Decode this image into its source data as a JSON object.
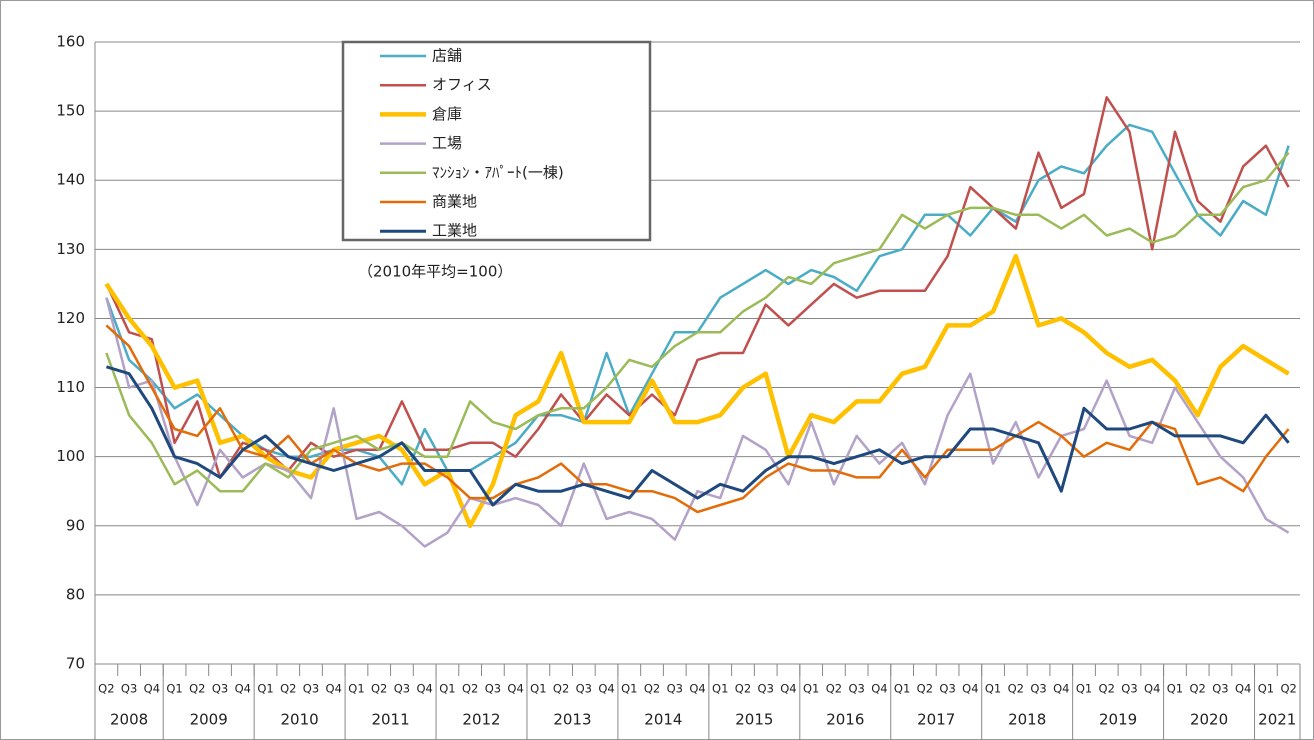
{
  "chart_data": {
    "type": "line",
    "note": "（2010年平均=100）",
    "categories": [
      "Q2",
      "Q3",
      "Q4",
      "Q1",
      "Q2",
      "Q3",
      "Q4",
      "Q1",
      "Q2",
      "Q3",
      "Q4",
      "Q1",
      "Q2",
      "Q3",
      "Q4",
      "Q1",
      "Q2",
      "Q3",
      "Q4",
      "Q1",
      "Q2",
      "Q3",
      "Q4",
      "Q1",
      "Q2",
      "Q3",
      "Q4",
      "Q1",
      "Q2",
      "Q3",
      "Q4",
      "Q1",
      "Q2",
      "Q3",
      "Q4",
      "Q1",
      "Q2",
      "Q3",
      "Q4",
      "Q1",
      "Q2",
      "Q3",
      "Q4",
      "Q1",
      "Q2",
      "Q3",
      "Q4",
      "Q1",
      "Q2",
      "Q3",
      "Q4",
      "Q1",
      "Q2"
    ],
    "years": [
      "2008",
      "2009",
      "2010",
      "2011",
      "2012",
      "2013",
      "2014",
      "2015",
      "2016",
      "2017",
      "2018",
      "2019",
      "2020",
      "2021"
    ],
    "ylim": [
      70,
      160
    ],
    "yticks": [
      70,
      80,
      90,
      100,
      110,
      120,
      130,
      140,
      150,
      160
    ],
    "grid": true,
    "series": [
      {
        "name": "店舗",
        "color": "#4bacc6",
        "line_width": 2.5,
        "values": [
          123,
          114,
          111,
          107,
          109,
          106,
          103,
          101,
          100,
          100,
          101,
          101,
          100,
          96,
          104,
          98,
          98,
          100,
          102,
          106,
          106,
          105,
          115,
          106,
          112,
          118,
          118,
          123,
          125,
          127,
          125,
          127,
          126,
          124,
          129,
          130,
          135,
          135,
          132,
          136,
          134,
          140,
          142,
          141,
          145,
          148,
          147,
          141,
          135,
          132,
          137,
          135,
          145
        ]
      },
      {
        "name": "オフィス",
        "color": "#c0504d",
        "line_width": 2.5,
        "values": [
          125,
          118,
          117,
          102,
          108,
          97,
          102,
          101,
          98,
          102,
          100,
          101,
          101,
          108,
          101,
          101,
          102,
          102,
          100,
          104,
          109,
          105,
          109,
          106,
          109,
          106,
          114,
          115,
          115,
          122,
          119,
          122,
          125,
          123,
          124,
          124,
          124,
          129,
          139,
          136,
          133,
          144,
          136,
          138,
          152,
          147,
          130,
          147,
          137,
          134,
          142,
          145,
          139
        ]
      },
      {
        "name": "倉庫",
        "color": "#ffc000",
        "line_width": 4.5,
        "values": [
          125,
          120,
          116,
          110,
          111,
          102,
          103,
          100,
          98,
          97,
          101,
          102,
          103,
          101,
          96,
          98,
          90,
          96,
          106,
          108,
          115,
          105,
          105,
          105,
          111,
          105,
          105,
          106,
          110,
          112,
          100,
          106,
          105,
          108,
          108,
          112,
          113,
          119,
          119,
          121,
          129,
          119,
          120,
          118,
          115,
          113,
          114,
          111,
          106,
          113,
          116,
          114,
          112
        ]
      },
      {
        "name": "工場",
        "color": "#b3a2c7",
        "line_width": 2.5,
        "values": [
          123,
          110,
          111,
          100,
          93,
          101,
          97,
          99,
          98,
          94,
          107,
          91,
          92,
          90,
          87,
          89,
          94,
          93,
          94,
          93,
          90,
          99,
          91,
          92,
          91,
          88,
          95,
          94,
          103,
          101,
          96,
          105,
          96,
          103,
          99,
          102,
          96,
          106,
          112,
          99,
          105,
          97,
          103,
          104,
          111,
          103,
          102,
          110,
          105,
          100,
          97,
          91,
          89
        ]
      },
      {
        "name": "ﾏﾝｼｮﾝ・ｱﾊﾟｰﾄ(一棟)",
        "color": "#9bbb59",
        "line_width": 2.5,
        "values": [
          115,
          106,
          102,
          96,
          98,
          95,
          95,
          99,
          97,
          101,
          102,
          103,
          101,
          102,
          100,
          100,
          108,
          105,
          104,
          106,
          107,
          107,
          110,
          114,
          113,
          116,
          118,
          118,
          121,
          123,
          126,
          125,
          128,
          129,
          130,
          135,
          133,
          135,
          136,
          136,
          135,
          135,
          133,
          135,
          132,
          133,
          131,
          132,
          135,
          135,
          139,
          140,
          144
        ]
      },
      {
        "name": "商業地",
        "color": "#e36c09",
        "line_width": 2.5,
        "values": [
          119,
          116,
          110,
          104,
          103,
          107,
          101,
          100,
          103,
          99,
          101,
          99,
          98,
          99,
          99,
          97,
          94,
          94,
          96,
          97,
          99,
          96,
          96,
          95,
          95,
          94,
          92,
          93,
          94,
          97,
          99,
          98,
          98,
          97,
          97,
          101,
          97,
          101,
          101,
          101,
          103,
          105,
          103,
          100,
          102,
          101,
          105,
          104,
          96,
          97,
          95,
          100,
          104
        ]
      },
      {
        "name": "工業地",
        "color": "#1f497d",
        "line_width": 3,
        "values": [
          113,
          112,
          107,
          100,
          99,
          97,
          101,
          103,
          100,
          99,
          98,
          99,
          100,
          102,
          98,
          98,
          98,
          93,
          96,
          95,
          95,
          96,
          95,
          94,
          98,
          96,
          94,
          96,
          95,
          98,
          100,
          100,
          99,
          100,
          101,
          99,
          100,
          100,
          104,
          104,
          103,
          102,
          95,
          107,
          104,
          104,
          105,
          103,
          103,
          103,
          102,
          106,
          102
        ]
      }
    ]
  }
}
